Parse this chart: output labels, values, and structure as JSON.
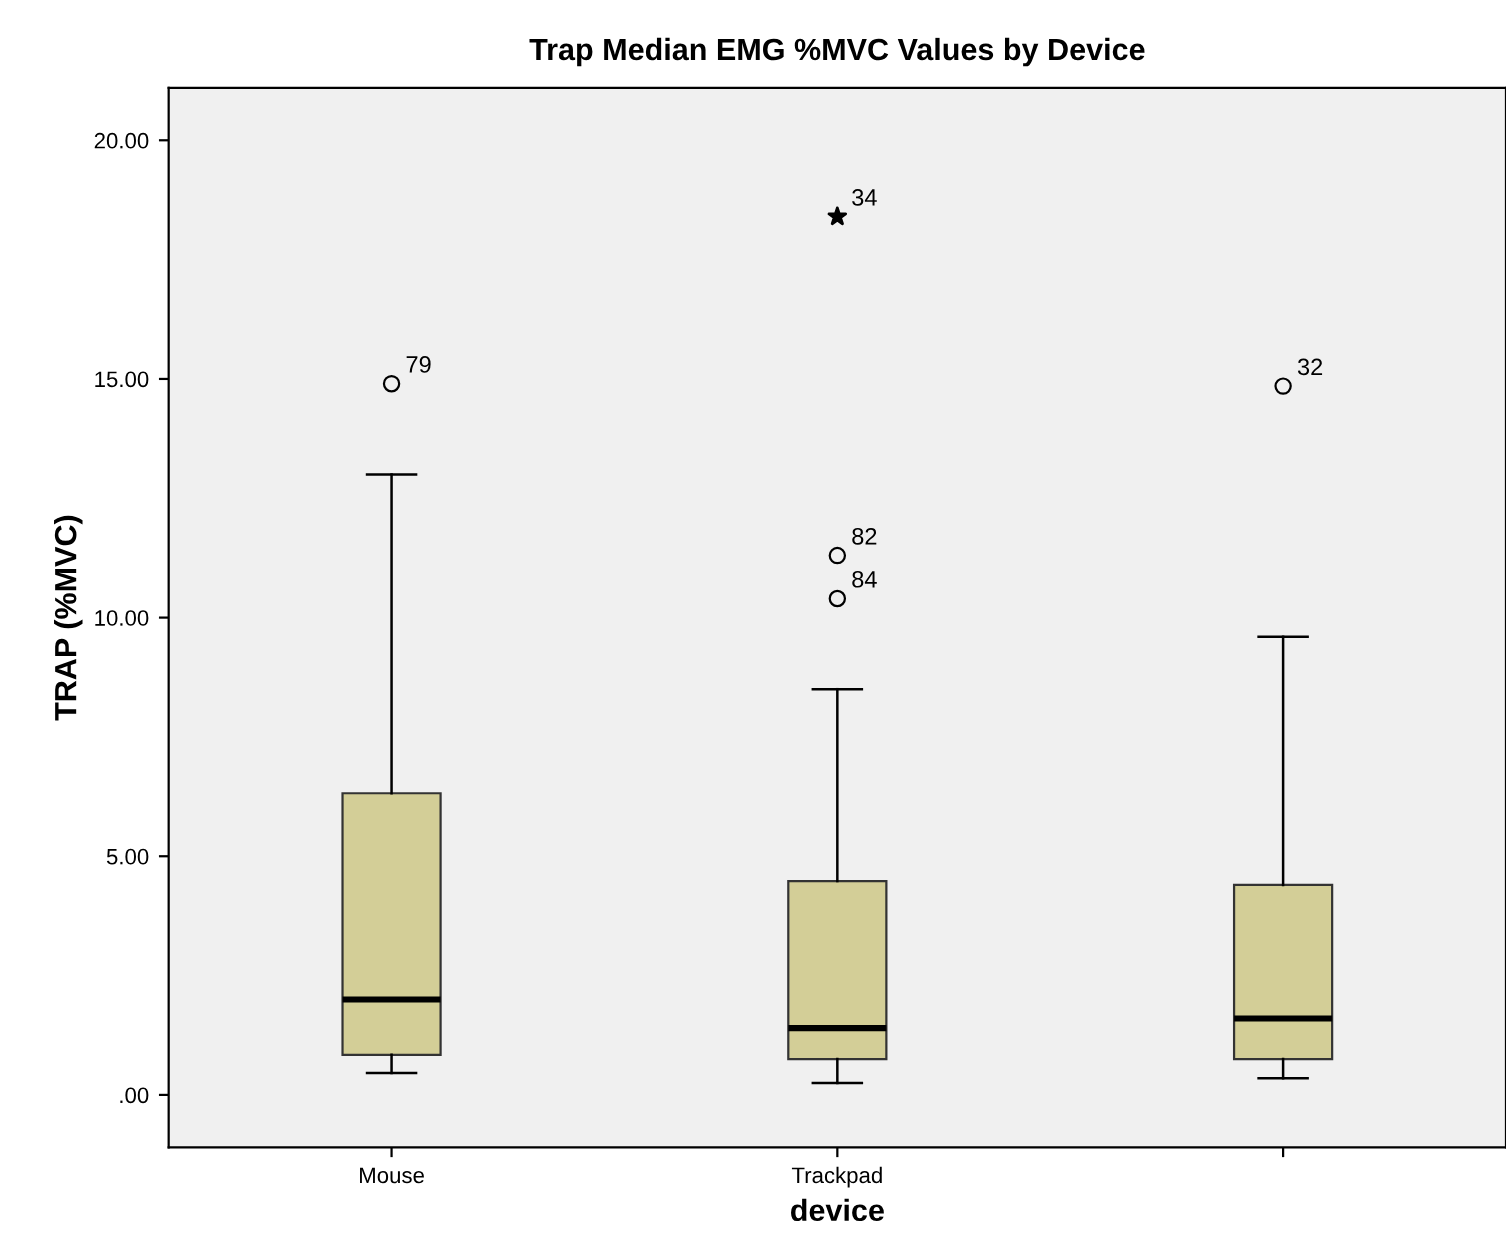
{
  "chart_data": {
    "type": "box",
    "title": "Trap Median EMG %MVC Values by Device",
    "xlabel": "device",
    "ylabel": "TRAP (%MVC)",
    "categories": [
      "Mouse",
      "Trackpad",
      null
    ],
    "boxes": [
      {
        "low": 0.46,
        "q1": 0.84,
        "median": 2.0,
        "q3": 6.32,
        "high": 13.0,
        "outliers": [
          14.9
        ]
      },
      {
        "low": 0.25,
        "q1": 0.75,
        "median": 1.4,
        "q3": 4.48,
        "high": 8.5,
        "outliers": [
          18.4,
          11.3,
          10.4
        ]
      },
      {
        "low": 0.35,
        "q1": 0.75,
        "median": 1.6,
        "q3": 4.4,
        "high": 9.6,
        "outliers": [
          14.85
        ]
      }
    ],
    "color": "#d3ce97",
    "ylim": [
      -1.1,
      21.1
    ],
    "yticks": [
      {
        "value": 0,
        "label": ".00"
      },
      {
        "value": 5,
        "label": "5.00"
      },
      {
        "value": 10,
        "label": "10.00"
      },
      {
        "value": 15,
        "label": "15.00"
      },
      {
        "value": 20,
        "label": "20.00"
      }
    ],
    "grid": false,
    "annotations": [
      "79",
      "34",
      "82",
      "84",
      "32"
    ]
  }
}
